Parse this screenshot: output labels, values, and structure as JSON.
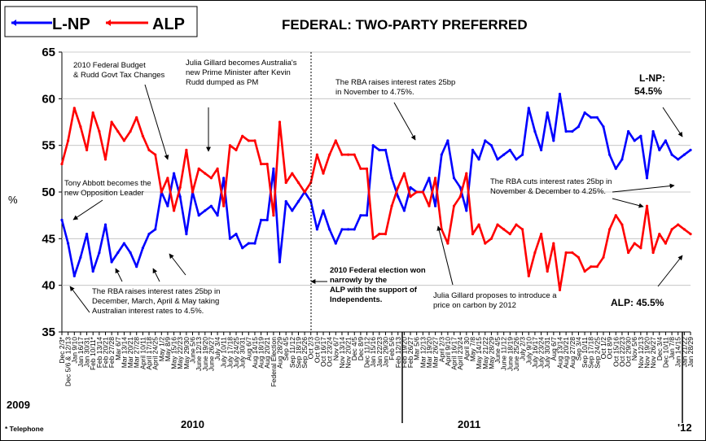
{
  "chart_data": {
    "type": "line",
    "title": "FEDERAL: TWO-PARTY PREFERRED",
    "ylabel": "%",
    "ylim": [
      35,
      65
    ],
    "yticks": [
      35,
      40,
      45,
      50,
      55,
      60,
      65
    ],
    "footnote": "* Telephone",
    "period_labels": [
      "2009",
      "2010",
      "2011",
      "'12"
    ],
    "series": [
      {
        "name": "L-NP",
        "color": "#0000ff",
        "values": [
          47,
          44.5,
          41,
          43,
          45.5,
          41.5,
          43.5,
          46.5,
          42.5,
          43.5,
          44.5,
          43.5,
          42,
          44,
          45.5,
          46,
          50,
          48.5,
          52,
          49.5,
          45.5,
          50,
          47.5,
          48,
          48.5,
          47.5,
          51.5,
          45,
          45.5,
          44,
          44.5,
          44.5,
          47,
          47,
          52.5,
          42.5,
          49,
          48,
          49,
          50,
          49,
          46,
          48,
          46,
          44.5,
          46,
          46,
          46,
          47.5,
          47.5,
          55,
          54.5,
          54.5,
          51.5,
          49.5,
          48,
          50.5,
          50,
          50,
          51.5,
          48.5,
          54,
          55.5,
          51.5,
          50.5,
          48,
          54.5,
          53.5,
          55.5,
          55,
          53.5,
          54,
          54.5,
          53.5,
          54,
          59,
          56.5,
          54.5,
          58.5,
          55.5,
          60.5,
          56.5,
          56.5,
          57,
          58.5,
          58,
          58,
          57,
          54,
          52.5,
          53.5,
          56.5,
          55.5,
          56,
          51.5,
          56.5,
          54.5,
          55.5,
          54,
          53.5,
          54,
          54.5
        ]
      },
      {
        "name": "ALP",
        "color": "#ff0000",
        "values": [
          53,
          55.5,
          59,
          57,
          54.5,
          58.5,
          56.5,
          53.5,
          57.5,
          56.5,
          55.5,
          56.5,
          58,
          56,
          54.5,
          54,
          50,
          51.5,
          48,
          50.5,
          54.5,
          50,
          52.5,
          52,
          51.5,
          52.5,
          48.5,
          55,
          54.5,
          56,
          55.5,
          55.5,
          53,
          53,
          47.5,
          57.5,
          51,
          52,
          51,
          50,
          51,
          54,
          52,
          54,
          55.5,
          54,
          54,
          54,
          52.5,
          52.5,
          45,
          45.5,
          45.5,
          48.5,
          50.5,
          52,
          49.5,
          50,
          50,
          48.5,
          51.5,
          46,
          44.5,
          48.5,
          49.5,
          52,
          45.5,
          46.5,
          44.5,
          45,
          46.5,
          46,
          45.5,
          46.5,
          46,
          41,
          43.5,
          45.5,
          41.5,
          44.5,
          39.5,
          43.5,
          43.5,
          43,
          41.5,
          42,
          42,
          43,
          46,
          47.5,
          46.5,
          43.5,
          44.5,
          44,
          48.5,
          43.5,
          45.5,
          44.5,
          46,
          46.5,
          46,
          45.5
        ]
      }
    ],
    "x_tick_labels": [
      "Dec 2/3*",
      "Dec 5/6 & 12/13",
      "Jan 9/10",
      "Jan 16/17",
      "Jan 30/31",
      "Feb 10/11*",
      "Feb 13/14",
      "Feb 20/21",
      "Feb 27/28",
      "Mar 6/7",
      "Mar 13/14",
      "Mar 20/21",
      "Mar 27/28",
      "April 10/11",
      "April 17/18",
      "April 24/25",
      "May 1/2",
      "May 8/9",
      "May 15/16",
      "May 22/23",
      "May 29/30",
      "June 5/6",
      "June 12/13",
      "June 19/20",
      "June 26/27",
      "July 3/4",
      "July 10/11",
      "July 17/18",
      "July 24/25",
      "July 30/31",
      "Aug 6/7",
      "Aug 14/15",
      "Aug 18/19",
      "Aug 20/21",
      "Federal Election",
      "Aug 28/29",
      "Sep 4/5",
      "Sep 11/12",
      "Sep 18/19",
      "Sep 25/26",
      "Oct 2/3",
      "Oct 9/10",
      "Oct 16/17",
      "Oct 23/24",
      "Nov 6/7",
      "Nov 13/14",
      "Nov 20/21",
      "Dec 4/5",
      "Dec 8/9",
      "Dec 11/12",
      "Jan 15/16",
      "Jan 22/23",
      "Jan 29/30",
      "Feb 5/6",
      "Feb 12/13",
      "Feb 19/20",
      "Feb 26/27",
      "Mar 5/6",
      "Mar 12/13",
      "Mar 19/20",
      "Mar 26/27",
      "April 2/3",
      "April 9/10",
      "April 16/17",
      "April 23/24",
      "April 30",
      "May 7/8",
      "May 14/15",
      "May 21/22",
      "May 28/29",
      "June 4/5",
      "June 11/12",
      "June 18/19",
      "June 25/26",
      "July 2/3",
      "July 9/10",
      "July 16/17",
      "July 23/24",
      "July 30/31",
      "Aug 6/7",
      "Aug 13/14",
      "Aug 20/21",
      "Aug 27/28",
      "Sep 3/4",
      "Sep 10/11",
      "Sep 17/18",
      "Sep 24/25",
      "Oct 1/2",
      "Oct 8/9",
      "Oct 15/16",
      "Oct 22/23",
      "Oct 29/30",
      "Nov 5/6",
      "Nov 12/13",
      "Nov 19/20",
      "Nov 26/27",
      "Dec 3/4",
      "Dec 10/11",
      "Jan 7/8",
      "Jan 14/15",
      "Jan 21/22",
      "Jan 28/29"
    ],
    "legend": [
      "L-NP",
      "ALP"
    ],
    "annotations": [
      {
        "id": "budget",
        "lines": [
          "2010 Federal Budget",
          "& Rudd Govt Tax Changes"
        ]
      },
      {
        "id": "gillard",
        "lines": [
          "Julia Gillard becomes Australia's",
          "new Prime Minister after Kevin",
          "Rudd dumped as PM"
        ]
      },
      {
        "id": "rba_nov",
        "lines": [
          "The RBA raises interest rates 25bp",
          "in November to 4.75%."
        ]
      },
      {
        "id": "lnp_label",
        "lines": [
          "L-NP:",
          "54.5%"
        ]
      },
      {
        "id": "abbott",
        "lines": [
          "Tony Abbott becomes the",
          "new Opposition Leader"
        ]
      },
      {
        "id": "rba_cuts",
        "lines": [
          "The RBA cuts interest rates 25bp in",
          "November & December  to 4.25%."
        ]
      },
      {
        "id": "rba_dec",
        "lines": [
          "The RBA raises interest rates 25bp in",
          "December, March, April & May taking",
          "Australian interest rates to 4.5%."
        ]
      },
      {
        "id": "election",
        "lines": [
          "2010 Federal election won",
          "narrowly by the",
          "ALP with the support of",
          "Independents."
        ]
      },
      {
        "id": "carbon",
        "lines": [
          "Julia Gillard proposes to introduce a",
          "price on carbon by 2012"
        ]
      },
      {
        "id": "alp_label",
        "lines": [
          "ALP: 45.5%"
        ]
      }
    ]
  }
}
